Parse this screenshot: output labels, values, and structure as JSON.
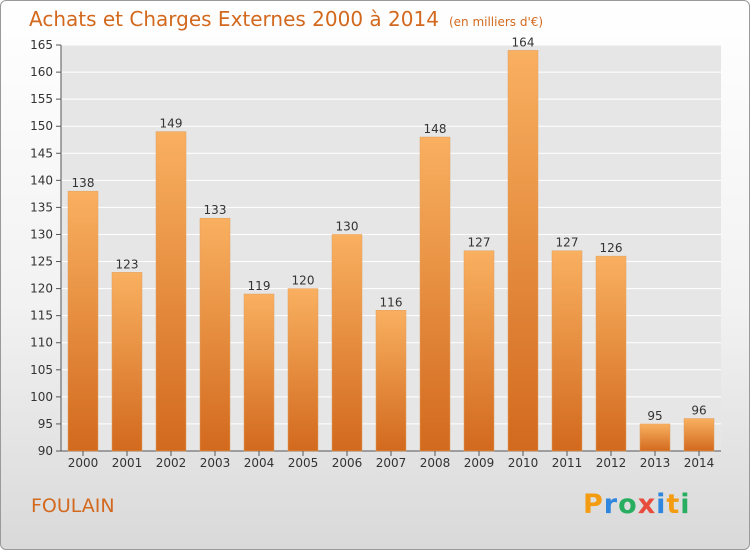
{
  "title": "Achats et Charges Externes 2000 à 2014",
  "subtitle": "(en milliers d'€)",
  "location": "FOULAIN",
  "logo": {
    "letters": [
      "P",
      "r",
      "o",
      "x",
      "i",
      "t",
      "i"
    ],
    "colors": [
      "#f39c12",
      "#2e86de",
      "#27ae60",
      "#e74c3c",
      "#2e86de",
      "#f39c12",
      "#27ae60"
    ]
  },
  "colors": {
    "bar_top": "#f9b060",
    "bar_bottom": "#d2691e",
    "accent": "#d2691e"
  },
  "chart_data": {
    "type": "bar",
    "categories": [
      "2000",
      "2001",
      "2002",
      "2003",
      "2004",
      "2005",
      "2006",
      "2007",
      "2008",
      "2009",
      "2010",
      "2011",
      "2012",
      "2013",
      "2014"
    ],
    "values": [
      138,
      123,
      149,
      133,
      119,
      120,
      130,
      116,
      148,
      127,
      164,
      127,
      126,
      95,
      96
    ],
    "ylim": [
      90,
      165
    ],
    "yticks": [
      90,
      95,
      100,
      105,
      110,
      115,
      120,
      125,
      130,
      135,
      140,
      145,
      150,
      155,
      160,
      165
    ],
    "grid": true,
    "data_labels": true
  }
}
